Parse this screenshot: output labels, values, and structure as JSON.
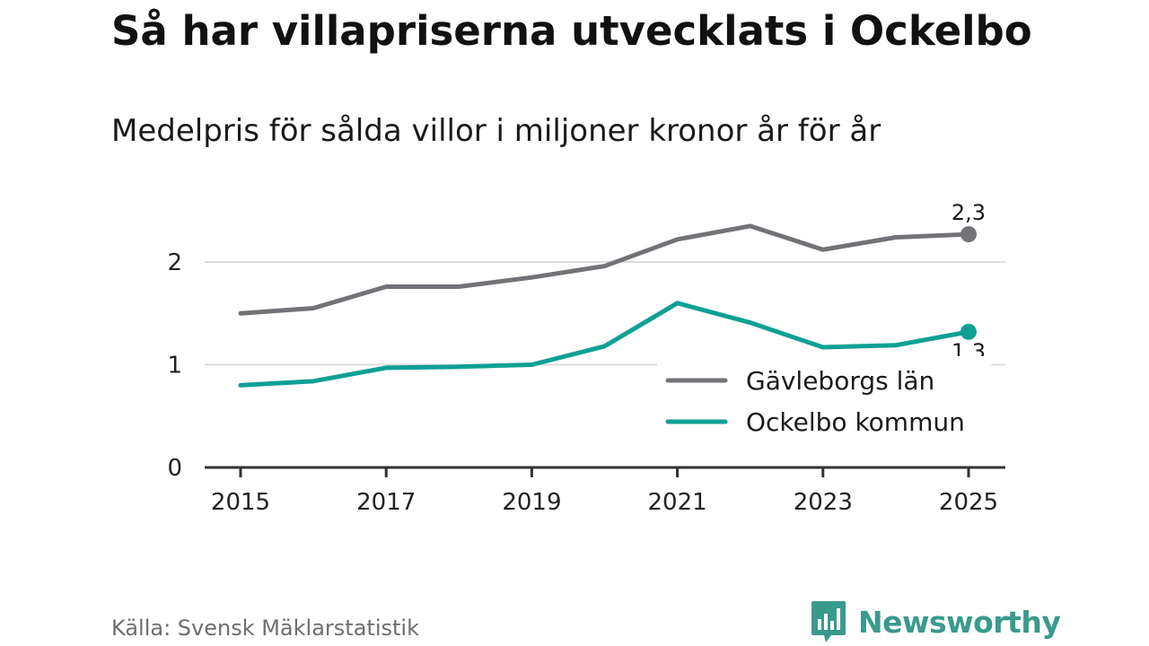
{
  "title": "Så har villapriserna utvecklats i Ockelbo",
  "subtitle": "Medelpris för sålda villor i miljoner kronor år för år",
  "source": "Källa: Svensk Mäklarstatistik",
  "logo": {
    "text": "Newsworthy",
    "icon": "bar-chart-icon",
    "color": "#3a9a8c"
  },
  "chart_data": {
    "type": "line",
    "x": [
      2015,
      2016,
      2017,
      2018,
      2019,
      2020,
      2021,
      2022,
      2023,
      2024,
      2025
    ],
    "xticks": [
      "2015",
      "2017",
      "2019",
      "2021",
      "2023",
      "2025"
    ],
    "yticks": [
      "0",
      "1",
      "2"
    ],
    "ylim": [
      0,
      2.5
    ],
    "xlim": [
      2015,
      2025
    ],
    "grid": true,
    "legend_position": "bottom-right",
    "series": [
      {
        "name": "Gävleborgs län",
        "color": "#737277",
        "values": [
          1.5,
          1.55,
          1.76,
          1.76,
          1.85,
          1.96,
          2.22,
          2.35,
          2.12,
          2.24,
          2.27
        ],
        "end_label": "2,3"
      },
      {
        "name": "Ockelbo kommun",
        "color": "#0fa095",
        "values": [
          0.8,
          0.84,
          0.97,
          0.98,
          1.0,
          1.18,
          1.6,
          1.41,
          1.17,
          1.19,
          1.32
        ],
        "end_label": "1,3"
      }
    ]
  }
}
